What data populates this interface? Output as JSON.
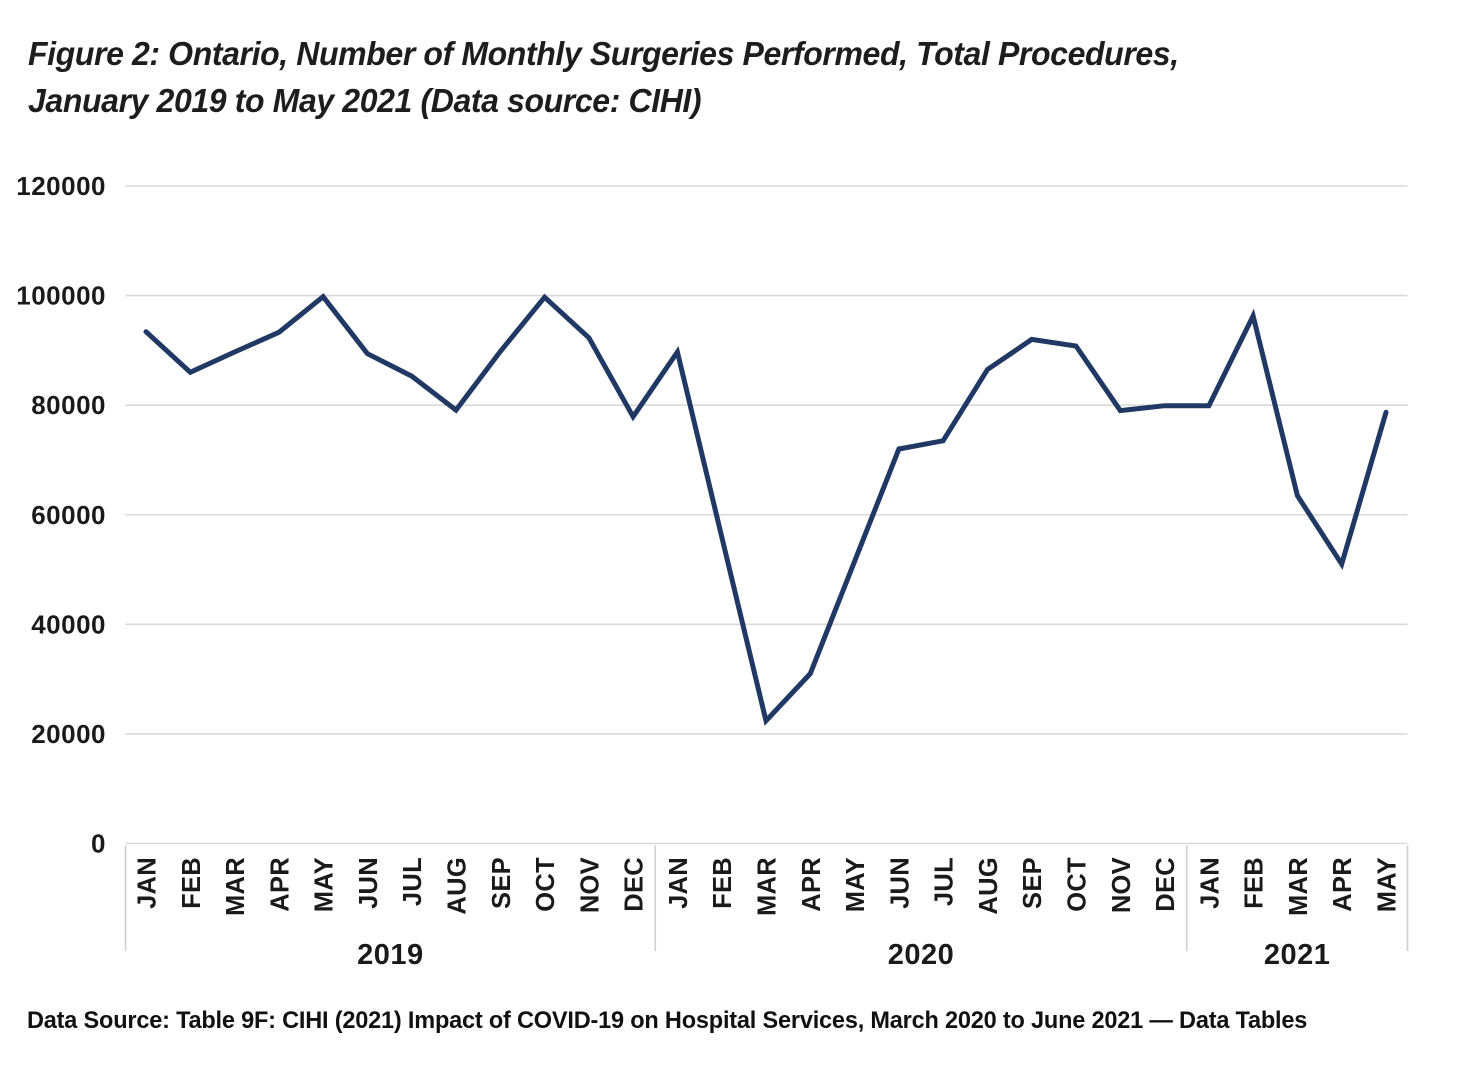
{
  "title": {
    "line1": "Figure 2: Ontario, Number of Monthly Surgeries Performed, Total Procedures,",
    "line2": "January 2019 to May 2021 (Data source: CIHI)"
  },
  "footer": {
    "text": "Data Source: Table 9F: CIHI (2021) Impact of COVID-19 on Hospital Services, March 2020 to June 2021 — Data Tables"
  },
  "colors": {
    "line": "#1f3864",
    "gridline": "#d9d9d9",
    "axis_line": "#cfcfcf",
    "tick_text": "#1a1a1a",
    "title_text": "#1d1d1f"
  },
  "chart_data": {
    "type": "line",
    "title": "Figure 2: Ontario, Number of Monthly Surgeries Performed, Total Procedures, January 2019 to May 2021 (Data source: CIHI)",
    "ylabel": "",
    "xlabel": "",
    "ylim": [
      0,
      120000
    ],
    "yticks": [
      0,
      20000,
      40000,
      60000,
      80000,
      100000,
      120000
    ],
    "grid": true,
    "legend_position": "none",
    "year_groups": [
      {
        "year": "2019",
        "months": [
          "JAN",
          "FEB",
          "MAR",
          "APR",
          "MAY",
          "JUN",
          "JUL",
          "AUG",
          "SEP",
          "OCT",
          "NOV",
          "DEC"
        ]
      },
      {
        "year": "2020",
        "months": [
          "JAN",
          "FEB",
          "MAR",
          "APR",
          "MAY",
          "JUN",
          "JUL",
          "AUG",
          "SEP",
          "OCT",
          "NOV",
          "DEC"
        ]
      },
      {
        "year": "2021",
        "months": [
          "JAN",
          "FEB",
          "MAR",
          "APR",
          "MAY"
        ]
      }
    ],
    "series": [
      {
        "name": "Total Procedures",
        "values": [
          93400,
          86000,
          89700,
          93300,
          99800,
          89400,
          85300,
          79100,
          89800,
          99700,
          92300,
          77900,
          89700,
          56000,
          22400,
          31000,
          51500,
          72000,
          73500,
          86500,
          92000,
          90800,
          79000,
          79900,
          79900,
          96300,
          63500,
          51000,
          78700
        ]
      }
    ]
  }
}
